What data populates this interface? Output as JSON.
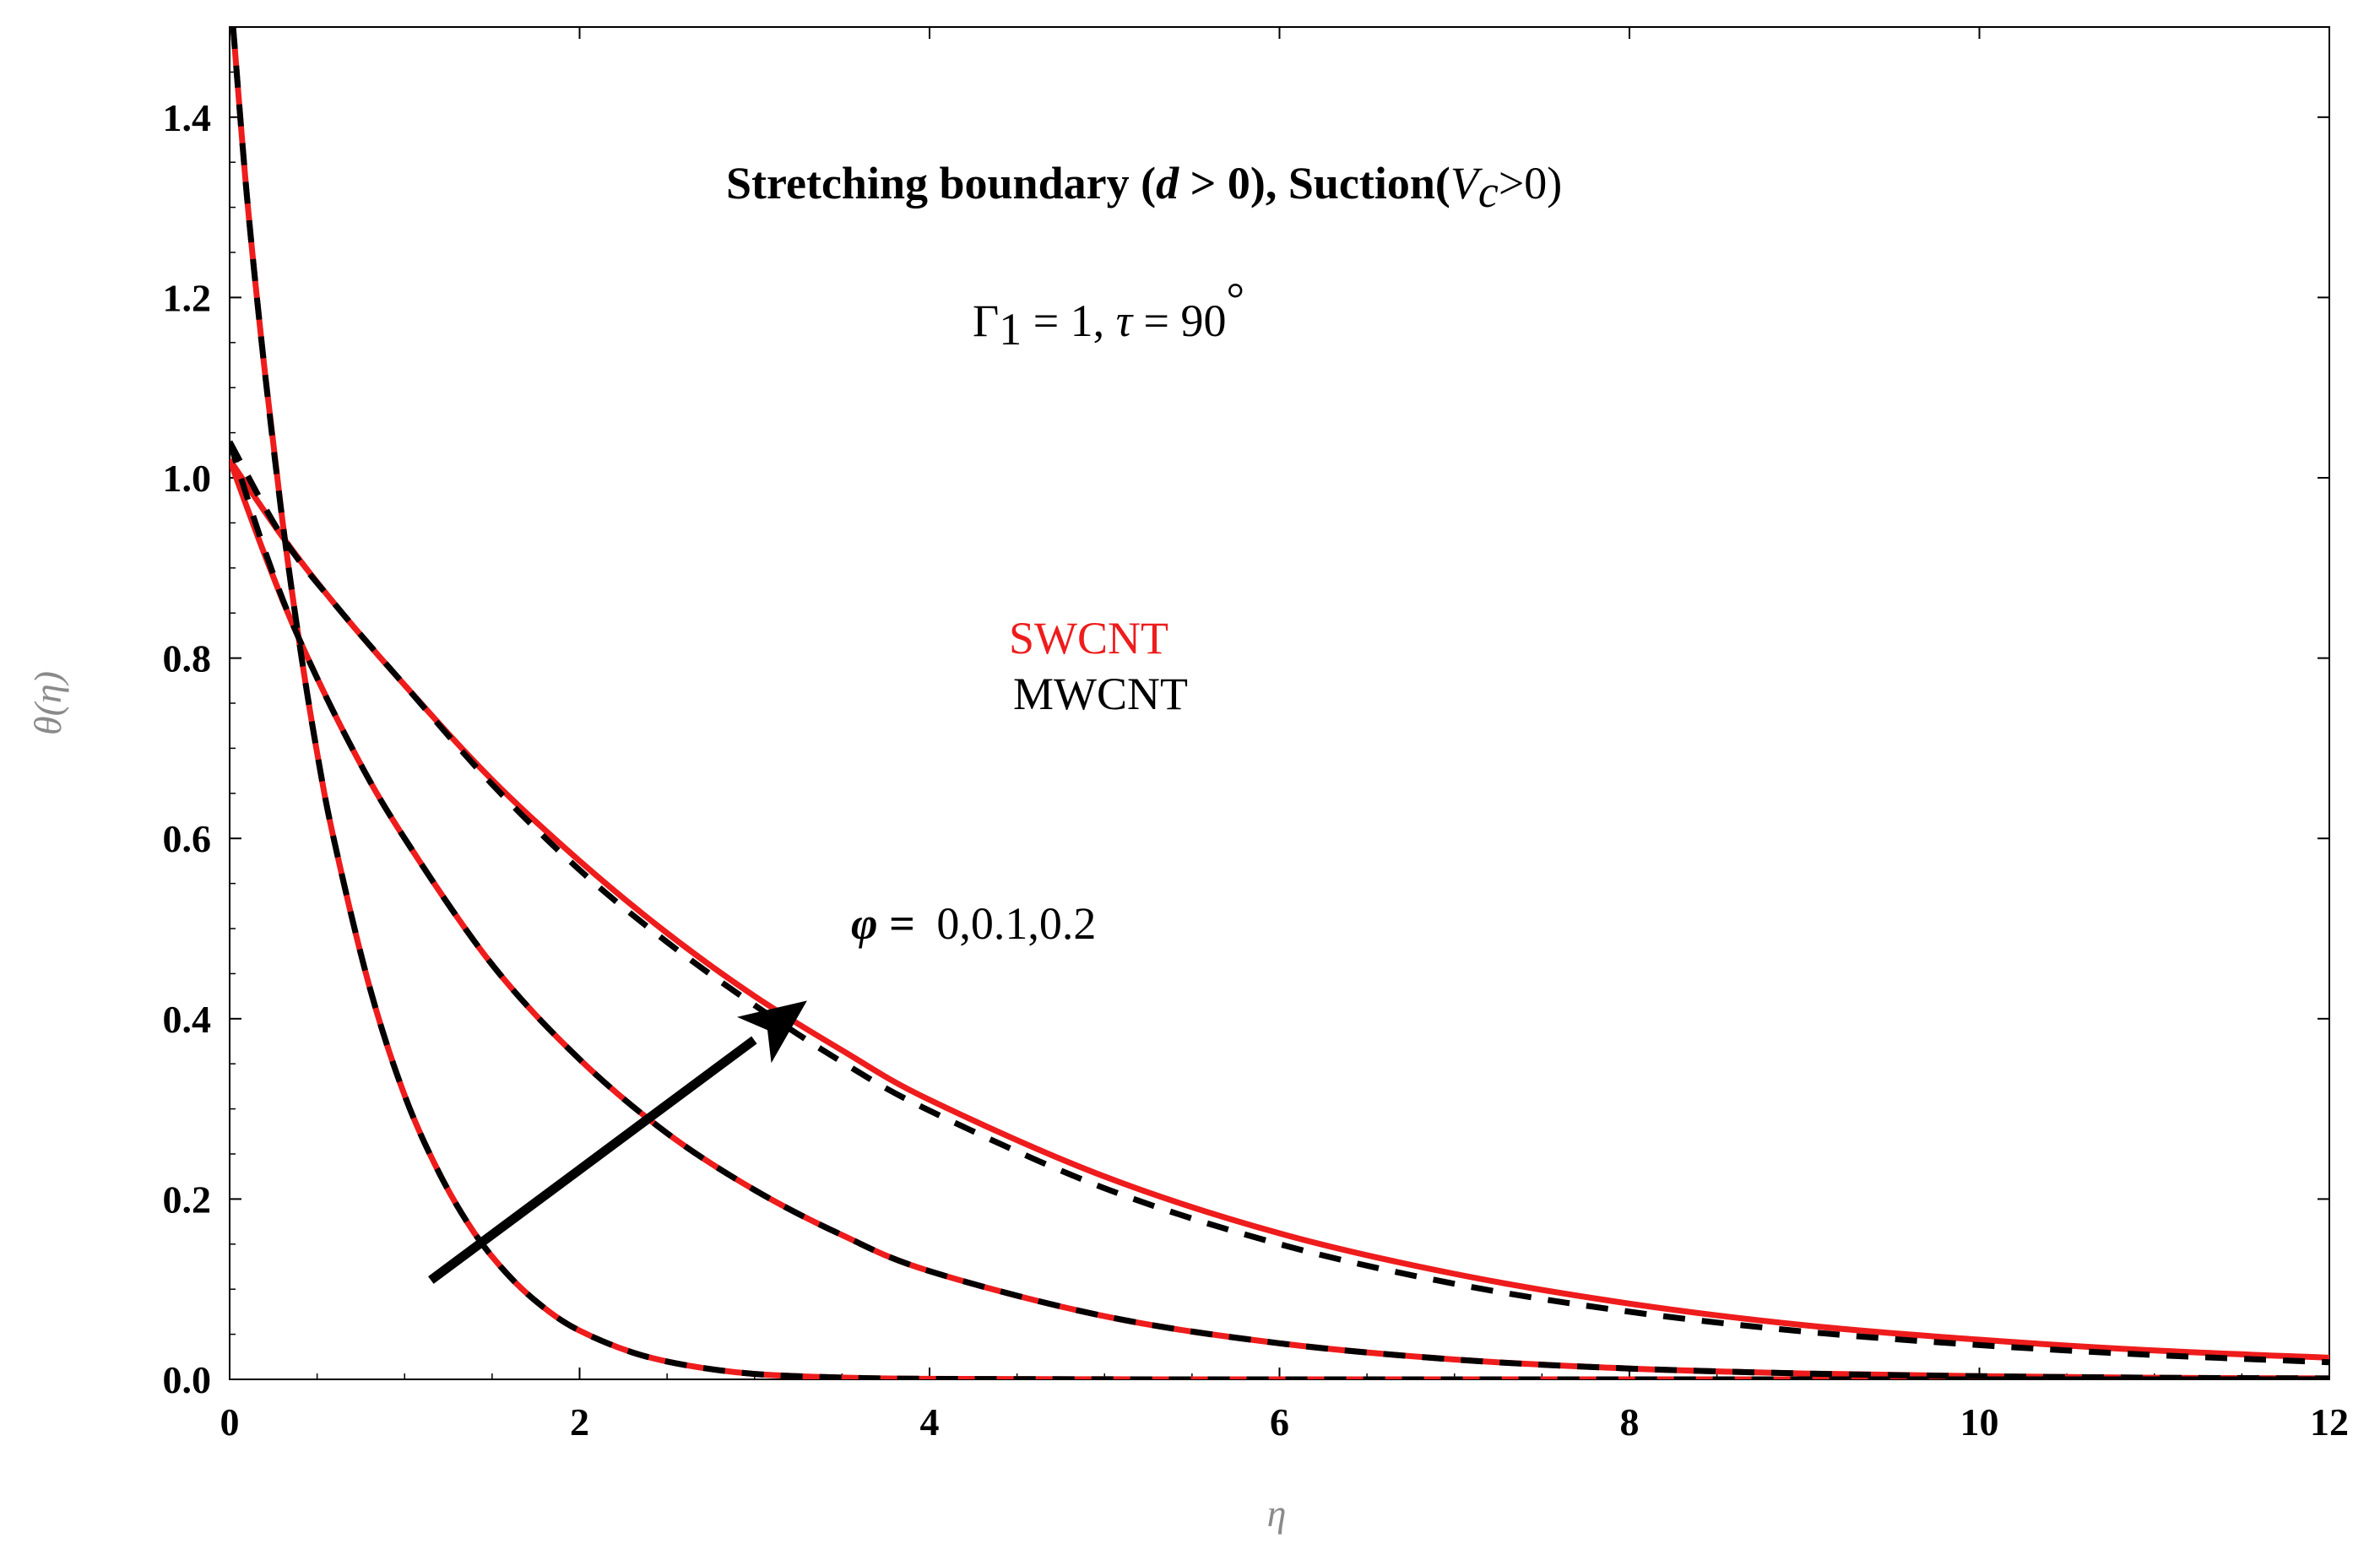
{
  "chart_data": {
    "type": "line",
    "title": "Stretching boundary (d > 0), Suction(Vc>0)",
    "title_parts": {
      "lead": "Stretching boundary (",
      "d": "d",
      "mid": " > 0), Suction(",
      "v": "V",
      "v_sub": "c",
      "tail": ">0)"
    },
    "params": {
      "gamma": "Γ",
      "gamma_sub": "1",
      "gamma_val": " = 1, ",
      "tau": "τ",
      "tau_val": " = 90",
      "degree": "°"
    },
    "phi_annotation": {
      "symbol": "φ",
      "eq": " = ",
      "values": "0,0.1,0.2"
    },
    "legend": {
      "swcnt": "SWCNT",
      "mwcnt": "MWCNT"
    },
    "colors": {
      "swcnt": "#ee1c1c",
      "mwcnt": "#000000",
      "arrow": "#000000"
    },
    "xlabel": "η",
    "ylabel": "θ(η)",
    "xlim": [
      0,
      12
    ],
    "ylim": [
      0,
      1.5
    ],
    "xticks": [
      "0",
      "2",
      "4",
      "6",
      "8",
      "10",
      "12"
    ],
    "yticks": [
      "0.0",
      "0.2",
      "0.4",
      "0.6",
      "0.8",
      "1.0",
      "1.2",
      "1.4"
    ],
    "arrow": {
      "from": [
        1.15,
        0.11
      ],
      "to": [
        3.3,
        0.42
      ]
    },
    "series": [
      {
        "name": "SWCNT φ=0",
        "fluid": "swcnt",
        "style": "solid",
        "x": [
          0.02,
          0.1,
          0.2,
          0.3,
          0.4,
          0.5,
          0.6,
          0.8,
          1.0,
          1.2,
          1.4,
          1.6,
          1.8,
          2.0,
          2.3,
          2.6,
          3.0,
          3.5,
          4.0,
          5.0,
          6.0,
          8.0,
          10.0,
          12.0
        ],
        "y": [
          1.5,
          1.31,
          1.12,
          0.955,
          0.815,
          0.695,
          0.595,
          0.435,
          0.315,
          0.228,
          0.162,
          0.114,
          0.079,
          0.054,
          0.03,
          0.016,
          0.006,
          0.002,
          0.0006,
          0.0001,
          0.0,
          0.0,
          0.0,
          0.0
        ]
      },
      {
        "name": "MWCNT φ=0",
        "fluid": "mwcnt",
        "style": "dashed",
        "x": [
          0.02,
          0.1,
          0.2,
          0.3,
          0.4,
          0.5,
          0.6,
          0.8,
          1.0,
          1.2,
          1.4,
          1.6,
          1.8,
          2.0,
          2.3,
          2.6,
          3.0,
          3.5,
          4.0,
          5.0,
          6.0,
          8.0,
          10.0,
          12.0
        ],
        "y": [
          1.5,
          1.31,
          1.12,
          0.955,
          0.815,
          0.695,
          0.595,
          0.435,
          0.315,
          0.228,
          0.162,
          0.114,
          0.079,
          0.054,
          0.03,
          0.016,
          0.006,
          0.002,
          0.0006,
          0.0001,
          0.0,
          0.0,
          0.0,
          0.0
        ]
      },
      {
        "name": "SWCNT φ=0.1",
        "fluid": "swcnt",
        "style": "solid",
        "x": [
          0.0,
          0.2,
          0.4,
          0.7,
          1.0,
          1.5,
          2.0,
          2.5,
          3.0,
          3.5,
          4.0,
          5.0,
          6.0,
          7.0,
          8.0,
          9.0,
          10.0,
          11.0,
          12.0
        ],
        "y": [
          1.02,
          0.915,
          0.82,
          0.7,
          0.6,
          0.46,
          0.355,
          0.273,
          0.21,
          0.16,
          0.12,
          0.07,
          0.04,
          0.022,
          0.012,
          0.0065,
          0.0035,
          0.0018,
          0.001
        ]
      },
      {
        "name": "MWCNT φ=0.1",
        "fluid": "mwcnt",
        "style": "dashed",
        "x": [
          0.0,
          0.2,
          0.4,
          0.7,
          1.0,
          1.5,
          2.0,
          2.5,
          3.0,
          3.5,
          4.0,
          5.0,
          6.0,
          7.0,
          8.0,
          9.0,
          10.0,
          11.0,
          12.0
        ],
        "y": [
          1.04,
          0.92,
          0.82,
          0.7,
          0.6,
          0.46,
          0.355,
          0.273,
          0.21,
          0.16,
          0.12,
          0.07,
          0.04,
          0.022,
          0.012,
          0.0065,
          0.0035,
          0.0018,
          0.001
        ]
      },
      {
        "name": "SWCNT φ=0.2",
        "fluid": "swcnt",
        "style": "solid",
        "x": [
          0.0,
          0.3,
          0.6,
          1.0,
          1.5,
          2.0,
          2.5,
          3.0,
          3.5,
          4.0,
          5.0,
          6.0,
          7.0,
          8.0,
          9.0,
          10.0,
          11.0,
          12.0
        ],
        "y": [
          1.02,
          0.935,
          0.86,
          0.77,
          0.665,
          0.575,
          0.495,
          0.425,
          0.365,
          0.31,
          0.225,
          0.162,
          0.117,
          0.084,
          0.06,
          0.044,
          0.032,
          0.024
        ]
      },
      {
        "name": "MWCNT φ=0.2",
        "fluid": "mwcnt",
        "style": "dashed",
        "x": [
          0.0,
          0.3,
          0.6,
          1.0,
          1.5,
          2.0,
          2.5,
          3.0,
          3.5,
          4.0,
          5.0,
          6.0,
          7.0,
          8.0,
          9.0,
          10.0,
          11.0,
          12.0
        ],
        "y": [
          1.04,
          0.935,
          0.86,
          0.77,
          0.66,
          0.565,
          0.485,
          0.415,
          0.352,
          0.298,
          0.212,
          0.15,
          0.106,
          0.075,
          0.053,
          0.038,
          0.027,
          0.019
        ]
      }
    ]
  }
}
